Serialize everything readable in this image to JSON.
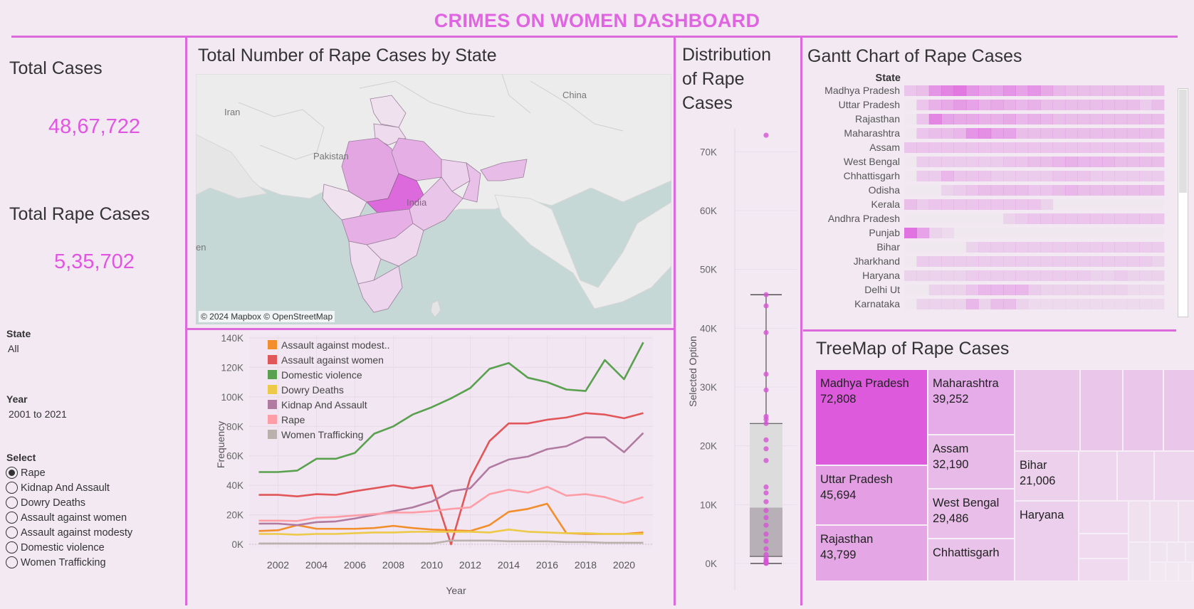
{
  "dashboard_title": "CRIMES ON WOMEN DASHBOARD",
  "kpis": {
    "total_cases_label": "Total Cases",
    "total_cases_value": "48,67,722",
    "total_rape_label": "Total Rape Cases",
    "total_rape_value": "5,35,702"
  },
  "filters": {
    "state_label": "State",
    "state_value": "All",
    "year_label": "Year",
    "year_value": "2001 to 2021",
    "select_label": "Select",
    "options": [
      "Rape",
      "Kidnap And Assault",
      "Dowry Deaths",
      "Assault against women",
      "Assault against modesty",
      "Domestic violence",
      "Women Trafficking"
    ],
    "selected": "Rape"
  },
  "map": {
    "title": "Total Number of Rape Cases by State",
    "labels": {
      "iran": "Iran",
      "pakistan": "Pakistan",
      "china": "China",
      "india": "India",
      "partial": "en"
    },
    "attribution": "© 2024 Mapbox © OpenStreetMap"
  },
  "distribution": {
    "title_lines": [
      "Distribution",
      "of Rape",
      "Cases"
    ]
  },
  "colors": {
    "accent": "#dd6add",
    "title": "#e065e0",
    "kpi": "#e056e0",
    "background": "#f3e9f3"
  },
  "chart_data": [
    {
      "type": "line",
      "xlabel": "Year",
      "ylabel": "Frequency",
      "x": [
        2001,
        2002,
        2003,
        2004,
        2005,
        2006,
        2007,
        2008,
        2009,
        2010,
        2011,
        2012,
        2013,
        2014,
        2015,
        2016,
        2017,
        2018,
        2019,
        2020,
        2021
      ],
      "x_ticks": [
        "2002",
        "2004",
        "2006",
        "2008",
        "2010",
        "2012",
        "2014",
        "2016",
        "2018",
        "2020"
      ],
      "y_ticks": [
        "0K",
        "20K",
        "40K",
        "60K",
        "80K",
        "100K",
        "120K",
        "140K"
      ],
      "ylim": [
        0,
        140000
      ],
      "grid": true,
      "legend": "top-left",
      "series": [
        {
          "name": "Assault against modest..",
          "color": "#f28e2b",
          "values": [
            9000,
            9500,
            13000,
            10500,
            10500,
            10500,
            11000,
            12500,
            11000,
            10000,
            9500,
            9000,
            13000,
            22000,
            24000,
            27500,
            7500,
            7000,
            7000,
            7000,
            8000
          ]
        },
        {
          "name": "Assault against women",
          "color": "#e15759",
          "values": [
            33500,
            33500,
            32500,
            34000,
            33500,
            36000,
            38000,
            40000,
            38000,
            40000,
            0,
            45000,
            70000,
            82000,
            82000,
            84500,
            86000,
            89000,
            88000,
            85500,
            89000
          ]
        },
        {
          "name": "Domestic violence",
          "color": "#59a14f",
          "values": [
            49000,
            49000,
            50000,
            58000,
            58000,
            62000,
            75000,
            80000,
            88000,
            93000,
            99000,
            106000,
            119000,
            123000,
            113000,
            110000,
            105000,
            104000,
            125000,
            112000,
            137000
          ]
        },
        {
          "name": "Dowry Deaths",
          "color": "#edc948",
          "values": [
            7000,
            7000,
            6500,
            7000,
            7000,
            7500,
            8000,
            8000,
            8500,
            8500,
            8500,
            8500,
            8000,
            10000,
            8500,
            8000,
            7500,
            7500,
            7000,
            7000,
            7000
          ]
        },
        {
          "name": "Kidnap And Assault",
          "color": "#b07aa1",
          "values": [
            14000,
            14000,
            13000,
            15000,
            15500,
            17500,
            20000,
            22500,
            25000,
            29000,
            36000,
            38000,
            52000,
            57500,
            59500,
            64500,
            66500,
            72500,
            72500,
            62500,
            75500
          ]
        },
        {
          "name": "Rape",
          "color": "#ff9da7",
          "values": [
            16000,
            16000,
            15800,
            18000,
            18500,
            19500,
            20500,
            21500,
            21500,
            22500,
            24000,
            25000,
            34000,
            37000,
            35000,
            39000,
            33000,
            34000,
            32000,
            28000,
            32000
          ]
        },
        {
          "name": "Women Trafficking",
          "color": "#bab0ac",
          "values": [
            500,
            500,
            500,
            500,
            500,
            500,
            500,
            500,
            500,
            500,
            2500,
            2500,
            2500,
            2000,
            2000,
            2000,
            1500,
            1500,
            1000,
            1000,
            1000
          ]
        }
      ]
    },
    {
      "type": "scatter",
      "subtype": "boxplot",
      "title": "Distribution of Rape Cases",
      "ylabel": "Selected Option",
      "y_ticks": [
        "0K",
        "10K",
        "20K",
        "30K",
        "40K",
        "50K",
        "60K",
        "70K"
      ],
      "ylim": [
        0,
        75000
      ],
      "values": [
        72808,
        45694,
        43799,
        39252,
        32190,
        29486,
        25000,
        24500,
        23800,
        21006,
        19500,
        17500,
        13000,
        12000,
        10500,
        9000,
        7800,
        6500,
        5000,
        3800,
        2500,
        1500,
        900,
        500,
        300,
        200,
        150,
        100,
        50,
        20
      ],
      "box": {
        "q1": 1200,
        "median": 9500,
        "q3": 23800,
        "whisker_low": 0,
        "whisker_high": 45694
      }
    },
    {
      "type": "heatmap",
      "title": "Gantt Chart of Rape Cases",
      "row_header": "State",
      "categories": [
        "Madhya Pradesh",
        "Uttar Pradesh",
        "Rajasthan",
        "Maharashtra",
        "Assam",
        "West Bengal",
        "Chhattisgarh",
        "Odisha",
        "Kerala",
        "Andhra Pradesh",
        "Punjab",
        "Bihar",
        "Jharkhand",
        "Haryana",
        "Delhi Ut",
        "Karnataka"
      ],
      "columns": 21,
      "values": [
        [
          0.25,
          0.3,
          0.6,
          0.7,
          0.8,
          0.6,
          0.5,
          0.5,
          0.6,
          0.5,
          0.6,
          0.45,
          0.35,
          0.3,
          0.3,
          0.3,
          0.3,
          0.3,
          0.3,
          0.3,
          0.3
        ],
        [
          0,
          0.25,
          0.4,
          0.45,
          0.55,
          0.5,
          0.4,
          0.45,
          0.4,
          0.35,
          0.4,
          0.3,
          0.3,
          0.3,
          0.3,
          0.3,
          0.3,
          0.3,
          0.3,
          0.2,
          0.3
        ],
        [
          0,
          0.25,
          0.7,
          0.5,
          0.45,
          0.45,
          0.4,
          0.4,
          0.45,
          0.35,
          0.4,
          0.35,
          0.3,
          0.3,
          0.3,
          0.3,
          0.3,
          0.3,
          0.3,
          0.3,
          0.3
        ],
        [
          0,
          0.25,
          0.3,
          0.3,
          0.35,
          0.6,
          0.65,
          0.5,
          0.5,
          0.3,
          0.3,
          0.3,
          0.3,
          0.3,
          0.3,
          0.3,
          0.3,
          0.3,
          0.3,
          0.3,
          0.3
        ],
        [
          0.25,
          0.25,
          0.25,
          0.25,
          0.25,
          0.25,
          0.25,
          0.25,
          0.25,
          0.25,
          0.25,
          0.25,
          0.25,
          0.25,
          0.25,
          0.25,
          0.25,
          0.25,
          0.25,
          0.25,
          0.25
        ],
        [
          0,
          0.2,
          0.2,
          0.2,
          0.2,
          0.2,
          0.2,
          0.2,
          0.25,
          0.25,
          0.3,
          0.3,
          0.35,
          0.4,
          0.35,
          0.35,
          0.35,
          0.3,
          0.3,
          0.3,
          0.3
        ],
        [
          0,
          0.2,
          0.2,
          0.35,
          0.25,
          0.25,
          0.25,
          0.2,
          0.2,
          0.2,
          0.2,
          0.2,
          0.25,
          0.25,
          0.25,
          0.2,
          0.2,
          0.2,
          0.2,
          0.2,
          0.2
        ],
        [
          0,
          0,
          0,
          0.15,
          0.2,
          0.25,
          0.3,
          0.3,
          0.3,
          0.3,
          0.25,
          0.25,
          0.3,
          0.35,
          0.3,
          0.3,
          0.3,
          0.3,
          0.3,
          0.3,
          0.3
        ],
        [
          0.3,
          0.2,
          0.25,
          0.25,
          0.25,
          0.25,
          0.25,
          0.25,
          0.25,
          0.25,
          0.25,
          0.15,
          0,
          0,
          0,
          0,
          0,
          0,
          0,
          0,
          0
        ],
        [
          0,
          0,
          0,
          0,
          0,
          0,
          0,
          0,
          0.15,
          0.2,
          0.25,
          0.25,
          0.25,
          0.25,
          0.25,
          0.25,
          0.25,
          0.25,
          0.25,
          0.25,
          0.25
        ],
        [
          0.85,
          0.5,
          0.15,
          0.1,
          0,
          0,
          0,
          0,
          0,
          0,
          0,
          0,
          0,
          0,
          0,
          0,
          0,
          0,
          0,
          0,
          0
        ],
        [
          0,
          0,
          0,
          0,
          0,
          0.15,
          0.2,
          0.2,
          0.2,
          0.2,
          0.2,
          0.2,
          0.2,
          0.2,
          0.2,
          0.2,
          0.2,
          0.2,
          0.2,
          0.2,
          0.2
        ],
        [
          0,
          0.2,
          0.2,
          0.2,
          0.2,
          0.2,
          0.2,
          0.2,
          0.2,
          0.2,
          0.2,
          0.2,
          0.2,
          0.2,
          0.2,
          0.2,
          0.2,
          0.2,
          0.2,
          0.2,
          0.15
        ],
        [
          0.15,
          0.15,
          0.15,
          0.15,
          0.15,
          0.2,
          0.2,
          0.2,
          0.2,
          0.2,
          0.2,
          0.2,
          0.2,
          0.2,
          0.2,
          0.15,
          0.15,
          0.2,
          0.15,
          0.15,
          0.15
        ],
        [
          0,
          0,
          0.15,
          0.15,
          0.15,
          0.25,
          0.35,
          0.35,
          0.35,
          0.35,
          0.2,
          0.15,
          0.15,
          0.15,
          0.15,
          0.15,
          0.15,
          0.15,
          0.1,
          0.1,
          0.1
        ],
        [
          0,
          0.15,
          0.15,
          0.15,
          0.15,
          0.35,
          0.15,
          0.3,
          0.3,
          0.15,
          0.1,
          0.1,
          0.1,
          0.1,
          0.1,
          0.1,
          0.1,
          0.1,
          0.1,
          0.1,
          0.1
        ]
      ]
    },
    {
      "type": "treemap",
      "title": "TreeMap of Rape Cases",
      "items": [
        {
          "name": "Madhya Pradesh",
          "value": "72,808"
        },
        {
          "name": "Uttar Pradesh",
          "value": "45,694"
        },
        {
          "name": "Rajasthan",
          "value": "43,799"
        },
        {
          "name": "Maharashtra",
          "value": "39,252"
        },
        {
          "name": "Assam",
          "value": "32,190"
        },
        {
          "name": "West Bengal",
          "value": "29,486"
        },
        {
          "name": "Chhattisgarh",
          "value": ""
        },
        {
          "name": "Bihar",
          "value": "21,006"
        },
        {
          "name": "Haryana",
          "value": ""
        }
      ]
    }
  ]
}
